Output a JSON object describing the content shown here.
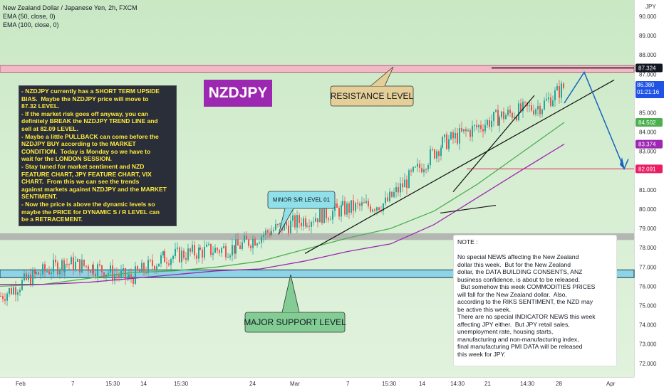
{
  "header": {
    "title": "New Zealand Dollar / Japanese Yen, 2h, FXCM",
    "ema50": "EMA (50, close, 0)",
    "ema100": "EMA (100, close, 0)"
  },
  "symbol_badge": "NZDJPY",
  "price_axis": {
    "unit": "JPY",
    "ticks": [
      "90.000",
      "89.000",
      "88.000",
      "87.000",
      "86.000",
      "85.000",
      "84.000",
      "83.000",
      "82.000",
      "81.000",
      "80.000",
      "79.000",
      "78.000",
      "77.000",
      "76.000",
      "75.000",
      "74.000",
      "73.000",
      "72.000"
    ],
    "tags": {
      "resistance": "87.324",
      "last_price": "86.380",
      "countdown": "01:21:16",
      "ema50": "84.502",
      "ema100": "83.374",
      "target": "82.091"
    }
  },
  "time_axis": {
    "labels": [
      "Feb",
      "7",
      "15:30",
      "14",
      "15:30",
      "24",
      "Mar",
      "7",
      "15:30",
      "14",
      "14:30",
      "21",
      "14:30",
      "28",
      "Apr"
    ]
  },
  "annotations": {
    "resistance": "RESISTANCE LEVEL",
    "minor_sr": "MINOR S/R LEVEL 01",
    "major_support": "MAJOR SUPPORT LEVEL"
  },
  "analysis_text": [
    "- NZDJPY currently has a SHORT TERM UPSIDE",
    "BIAS.  Maybe the NZDJPY price will move to",
    "87.32 LEVEL.",
    "- If the market risk goes off anyway, you can",
    "definitely BREAK the NZDJPY TREND LINE and",
    "sell at 82.09 LEVEL.",
    "- Maybe a little PULLBACK can come before the",
    "NZDJPY BUY according to the MARKET",
    "CONDITION.  Today is Monday so we have to",
    "wait for the LONDON SESSION.",
    "- Stay tuned for market sentiment and NZD",
    "FEATURE CHART, JPY FEATURE CHART, VIX",
    "CHART.  From this we can see the trends",
    "against markets against NZDJPY and the MARKET",
    "SENTIMENT.",
    "- Now the price is above the dynamic levels so",
    "maybe the PRICE for DYNAMIC S / R LEVEL can",
    "be a RETRACEMENT."
  ],
  "note_text": [
    "NOTE :",
    "",
    "No special NEWS affecting the New Zealand",
    "dollar this week.  But for the New Zealand",
    "dollar, the DATA BUILDING CONSENTS, ANZ",
    "business confidence, is about to be released.",
    "  But somehow this week COMMODITIES PRICES",
    "will fall for the New Zealand dollar.  Also,",
    "according to the RIKS SENTIMENT, the NZD may",
    "be active this week.",
    "There are no special INDICATOR NEWS this week",
    "affecting JPY either.  But JPY retail sales,",
    "unemployment rate, housing starts,",
    "manufacturing and non-manufacturing index,",
    "final manufacturing PMI DATA will be released",
    "this week for JPY."
  ],
  "colors": {
    "bull": "#26a69a",
    "bear": "#ef5350",
    "ema50": "#4caf50",
    "ema100": "#9c27b0",
    "projection": "#1565c0",
    "resistance_zone": "#f2b8c6",
    "support_zone": "#8fd3e6",
    "minor_zone": "#a9a9a9"
  },
  "chart_data": {
    "type": "line",
    "title": "New Zealand Dollar / Japanese Yen, 2h, FXCM",
    "ylim": [
      71.5,
      90.5
    ],
    "x": [
      "Feb",
      "7",
      "15:30",
      "14",
      "15:30",
      "24",
      "Mar",
      "7",
      "15:30",
      "14",
      "14:30",
      "21",
      "14:30",
      "28"
    ],
    "series": [
      {
        "name": "EMA (50, close, 0)",
        "values": [
          76.0,
          76.1,
          76.4,
          76.7,
          76.8,
          77.0,
          77.3,
          77.9,
          78.5,
          79.0,
          79.9,
          81.3,
          82.9,
          84.502
        ]
      },
      {
        "name": "EMA (100, close, 0)",
        "values": [
          76.1,
          76.1,
          76.2,
          76.4,
          76.6,
          76.8,
          76.9,
          77.3,
          77.8,
          78.2,
          79.2,
          80.6,
          82.0,
          83.374
        ]
      }
    ],
    "price_path": [
      75.5,
      76.6,
      77.2,
      77.0,
      76.4,
      77.5,
      77.8,
      78.0,
      78.9,
      79.5,
      80.0,
      80.3,
      83.4,
      84.8,
      85.4,
      86.38
    ],
    "levels": {
      "resistance": 87.324,
      "target": 82.091,
      "minor_sr": 78.6,
      "major_support": 76.6
    },
    "projection": [
      86.38,
      87.1,
      82.091
    ]
  }
}
